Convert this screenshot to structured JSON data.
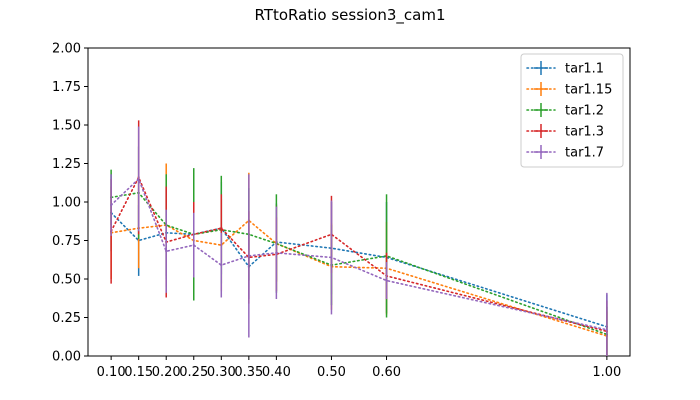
{
  "chart_data": {
    "type": "line",
    "title": "RTtoRatio session3_cam1",
    "xlabel": "",
    "ylabel": "",
    "x": [
      0.1,
      0.15,
      0.2,
      0.25,
      0.3,
      0.35,
      0.4,
      0.5,
      0.6,
      1.0
    ],
    "x_tick_labels": [
      "0.10",
      "0.15",
      "0.20",
      "0.25",
      "0.30",
      "0.35",
      "0.40",
      "0.50",
      "0.60",
      "1.00"
    ],
    "ylim": [
      0,
      2
    ],
    "y_ticks": [
      0,
      0.25,
      0.5,
      0.75,
      1.0,
      1.25,
      1.5,
      1.75,
      2.0
    ],
    "y_tick_labels": [
      "0.00",
      "0.25",
      "0.50",
      "0.75",
      "1.00",
      "1.25",
      "1.50",
      "1.75",
      "2.00"
    ],
    "legend_position": "top-right",
    "grid": false,
    "line_style": "dotted",
    "series": [
      {
        "name": "tar1.1",
        "color": "#1f77b4",
        "values": [
          0.93,
          0.75,
          0.8,
          0.79,
          0.83,
          0.58,
          0.74,
          0.7,
          0.64,
          0.19
        ],
        "errors": [
          0.25,
          0.23,
          0.3,
          0.4,
          0.3,
          0.21,
          0.25,
          0.3,
          0.36,
          0.21
        ]
      },
      {
        "name": "tar1.15",
        "color": "#ff7f0e",
        "values": [
          0.8,
          0.83,
          0.85,
          0.75,
          0.72,
          0.88,
          0.73,
          0.58,
          0.57,
          0.13
        ],
        "errors": [
          0.3,
          0.26,
          0.4,
          0.3,
          0.3,
          0.31,
          0.25,
          0.28,
          0.3,
          0.16
        ]
      },
      {
        "name": "tar1.2",
        "color": "#2ca02c",
        "values": [
          1.03,
          1.06,
          0.85,
          0.79,
          0.82,
          0.79,
          0.73,
          0.59,
          0.65,
          0.14
        ],
        "errors": [
          0.18,
          0.3,
          0.33,
          0.43,
          0.35,
          0.3,
          0.32,
          0.26,
          0.4,
          0.18
        ]
      },
      {
        "name": "tar1.3",
        "color": "#d62728",
        "values": [
          0.81,
          1.16,
          0.74,
          0.79,
          0.83,
          0.64,
          0.66,
          0.79,
          0.52,
          0.16
        ],
        "errors": [
          0.34,
          0.37,
          0.36,
          0.21,
          0.22,
          0.3,
          0.24,
          0.25,
          0.15,
          0.2
        ]
      },
      {
        "name": "tar1.7",
        "color": "#9467bd",
        "values": [
          0.98,
          1.15,
          0.68,
          0.72,
          0.59,
          0.65,
          0.67,
          0.64,
          0.49,
          0.17
        ],
        "errors": [
          0.2,
          0.34,
          0.27,
          0.21,
          0.21,
          0.53,
          0.3,
          0.37,
          0.12,
          0.24
        ]
      }
    ]
  }
}
